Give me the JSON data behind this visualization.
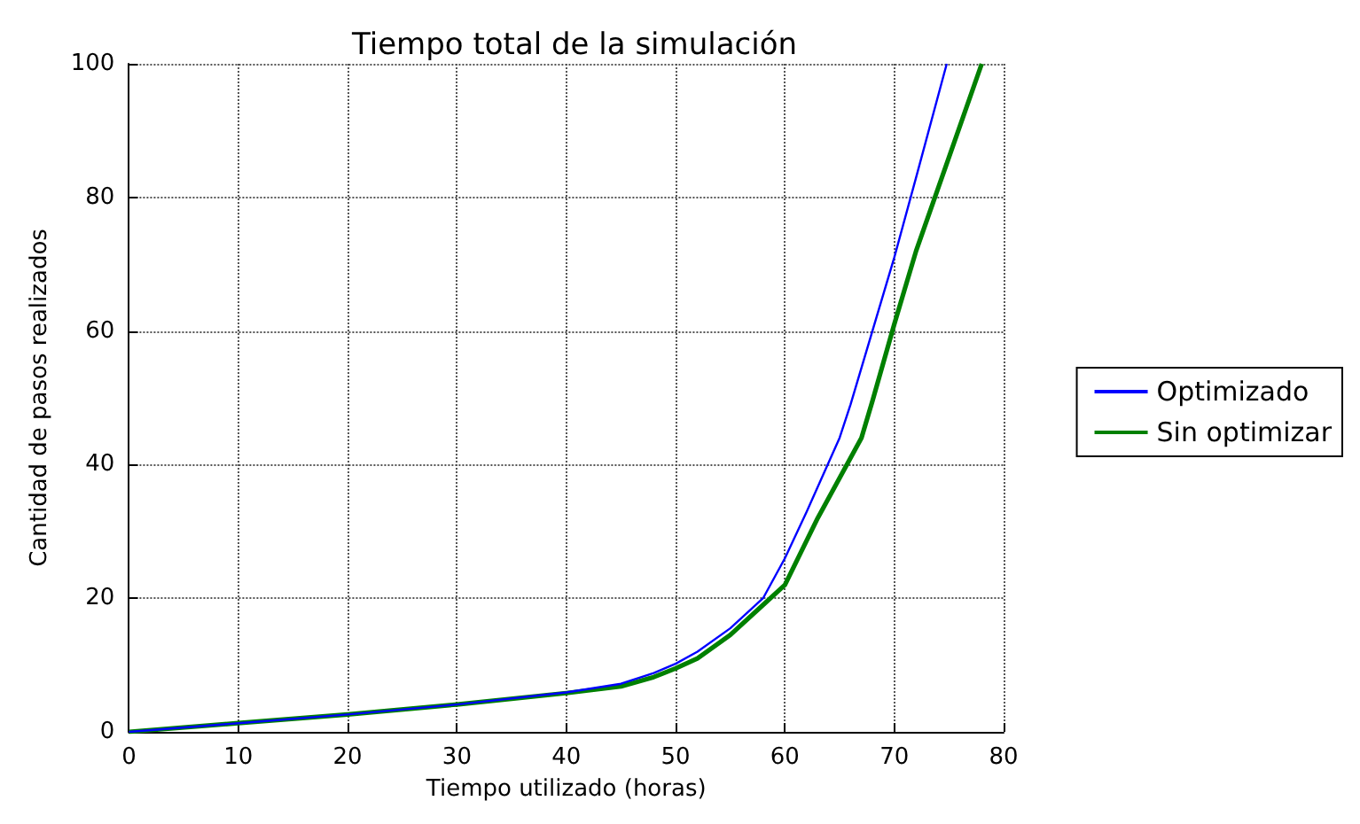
{
  "chart_data": {
    "type": "line",
    "title": "Tiempo total de la simulación",
    "xlabel": "Tiempo utilizado (horas)",
    "ylabel": "Cantidad de pasos realizados",
    "series": [
      {
        "name": "Optimizado",
        "color": "#0000ff",
        "x": [
          0,
          10,
          20,
          30,
          40,
          45,
          48,
          50,
          52,
          55,
          58,
          60,
          62,
          65,
          66,
          68,
          70,
          72,
          74.8
        ],
        "values": [
          0,
          1.3,
          2.6,
          4.1,
          5.9,
          7.2,
          8.8,
          10.2,
          12,
          15.5,
          20,
          26,
          33,
          44,
          49,
          60,
          71,
          83,
          100
        ]
      },
      {
        "name": "Sin optimizar",
        "color": "#008000",
        "x": [
          0,
          10,
          20,
          30,
          40,
          45,
          48,
          50,
          52,
          55,
          58,
          60,
          63,
          67,
          68,
          70,
          72,
          75,
          78
        ],
        "values": [
          0,
          1.3,
          2.6,
          4.1,
          5.8,
          6.8,
          8.2,
          9.5,
          11,
          14.5,
          19,
          22,
          32,
          44,
          49.5,
          61,
          72,
          86,
          100
        ]
      }
    ],
    "xlim": [
      0,
      80
    ],
    "xticks": [
      0,
      10,
      20,
      30,
      40,
      50,
      60,
      70,
      80
    ],
    "ylim": [
      0,
      100
    ],
    "yticks": [
      0,
      20,
      40,
      60,
      80,
      100
    ],
    "grid": true,
    "legend": "right",
    "line_style": "solid",
    "marker": "none"
  }
}
